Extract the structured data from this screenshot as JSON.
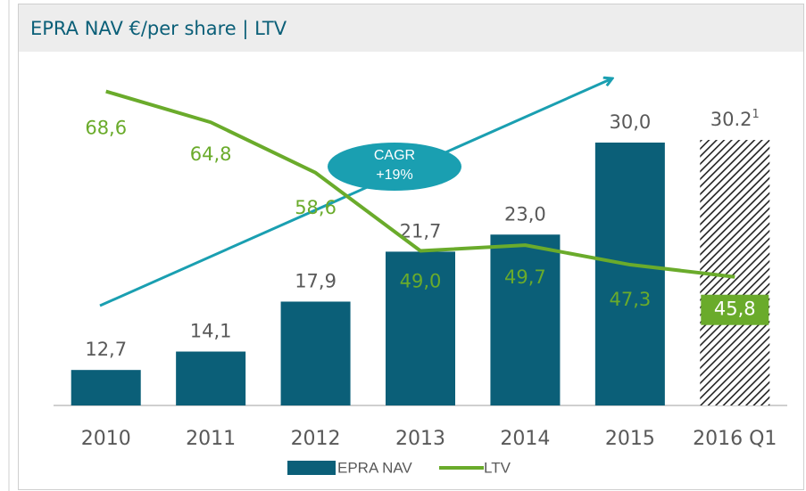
{
  "chart_data": {
    "type": "bar",
    "title": "EPRA NAV €/per share | LTV",
    "categories": [
      "2010",
      "2011",
      "2012",
      "2013",
      "2014",
      "2015",
      "2016 Q1"
    ],
    "series": [
      {
        "name": "EPRA NAV",
        "type": "bar",
        "color": "#0b5f78",
        "values": [
          12.7,
          14.1,
          17.9,
          21.7,
          23.0,
          30.0,
          30.2
        ],
        "value_labels": [
          "12,7",
          "14,1",
          "17,9",
          "21,7",
          "23,0",
          "30,0",
          "30.2"
        ],
        "hatched": [
          false,
          false,
          false,
          false,
          false,
          false,
          true
        ]
      },
      {
        "name": "LTV",
        "type": "line",
        "axis": "y2",
        "color": "#6aab2b",
        "values": [
          68.6,
          64.8,
          58.6,
          49.0,
          49.7,
          47.3,
          45.8
        ],
        "value_labels": [
          "68,6",
          "64,8",
          "58,6",
          "49,0",
          "49,7",
          "47,3",
          "45,8"
        ]
      }
    ],
    "footnote_marker": "1",
    "annotation": {
      "lines": [
        "CAGR",
        "+19%"
      ],
      "color": "#1a9fb1"
    },
    "ylim": [
      10,
      36
    ],
    "y2lim": [
      30,
      72
    ],
    "legend": "bottom"
  }
}
